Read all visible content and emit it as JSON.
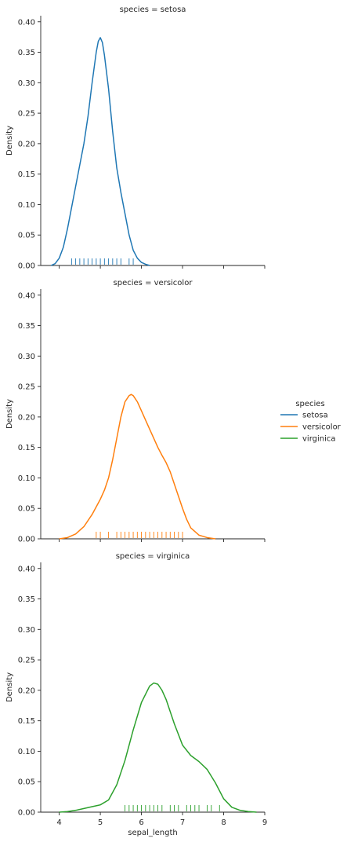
{
  "chart_data": {
    "type": "line",
    "kind": "kde-with-rug",
    "facet_variable": "species",
    "xlabel": "sepal_length",
    "ylabel": "Density",
    "xlim": [
      3.55,
      9.0
    ],
    "ylim": [
      0,
      0.41
    ],
    "xticks": [
      4,
      5,
      6,
      7,
      8,
      9
    ],
    "yticks": [
      0.0,
      0.05,
      0.1,
      0.15,
      0.2,
      0.25,
      0.3,
      0.35,
      0.4
    ],
    "grid": false,
    "legend": {
      "title": "species",
      "placement": "right-center"
    },
    "facets": [
      {
        "title": "species = setosa",
        "name": "setosa",
        "color": "#1f77b4",
        "x": [
          3.8,
          3.9,
          4.0,
          4.1,
          4.2,
          4.3,
          4.4,
          4.5,
          4.6,
          4.7,
          4.8,
          4.9,
          4.95,
          5.0,
          5.05,
          5.1,
          5.2,
          5.3,
          5.4,
          5.5,
          5.6,
          5.7,
          5.8,
          5.9,
          6.0,
          6.1,
          6.2
        ],
        "density": [
          0.0,
          0.003,
          0.012,
          0.03,
          0.06,
          0.095,
          0.13,
          0.165,
          0.2,
          0.245,
          0.3,
          0.35,
          0.368,
          0.374,
          0.366,
          0.345,
          0.29,
          0.22,
          0.16,
          0.12,
          0.085,
          0.05,
          0.025,
          0.012,
          0.005,
          0.002,
          0.0
        ],
        "rug": [
          4.3,
          4.4,
          4.5,
          4.6,
          4.7,
          4.8,
          4.9,
          5.0,
          5.1,
          5.2,
          5.3,
          5.4,
          5.5,
          5.7,
          5.8
        ]
      },
      {
        "title": "species = versicolor",
        "name": "versicolor",
        "color": "#ff7f0e",
        "x": [
          4.0,
          4.2,
          4.4,
          4.6,
          4.8,
          5.0,
          5.1,
          5.2,
          5.3,
          5.4,
          5.5,
          5.6,
          5.7,
          5.75,
          5.8,
          5.9,
          6.0,
          6.1,
          6.2,
          6.3,
          6.4,
          6.5,
          6.6,
          6.7,
          6.8,
          6.9,
          7.0,
          7.1,
          7.2,
          7.4,
          7.6,
          7.8
        ],
        "density": [
          0.0,
          0.002,
          0.008,
          0.02,
          0.04,
          0.065,
          0.08,
          0.1,
          0.13,
          0.165,
          0.2,
          0.225,
          0.235,
          0.237,
          0.235,
          0.225,
          0.21,
          0.195,
          0.18,
          0.165,
          0.15,
          0.137,
          0.125,
          0.11,
          0.09,
          0.07,
          0.05,
          0.032,
          0.018,
          0.006,
          0.002,
          0.0
        ],
        "rug": [
          4.9,
          5.0,
          5.2,
          5.4,
          5.5,
          5.6,
          5.7,
          5.8,
          5.9,
          6.0,
          6.1,
          6.2,
          6.3,
          6.4,
          6.5,
          6.6,
          6.7,
          6.8,
          6.9,
          7.0
        ]
      },
      {
        "title": "species = virginica",
        "name": "virginica",
        "color": "#2ca02c",
        "x": [
          4.0,
          4.2,
          4.4,
          4.6,
          4.8,
          5.0,
          5.2,
          5.4,
          5.6,
          5.8,
          6.0,
          6.2,
          6.3,
          6.4,
          6.5,
          6.6,
          6.8,
          7.0,
          7.2,
          7.4,
          7.6,
          7.8,
          8.0,
          8.2,
          8.4,
          8.6,
          8.8
        ],
        "density": [
          0.0,
          0.001,
          0.003,
          0.006,
          0.009,
          0.012,
          0.02,
          0.045,
          0.085,
          0.135,
          0.18,
          0.207,
          0.212,
          0.21,
          0.2,
          0.185,
          0.145,
          0.11,
          0.093,
          0.083,
          0.07,
          0.048,
          0.022,
          0.008,
          0.003,
          0.001,
          0.0
        ],
        "rug": [
          5.6,
          5.7,
          5.8,
          5.9,
          6.0,
          6.1,
          6.2,
          6.3,
          6.4,
          6.5,
          6.7,
          6.8,
          6.9,
          7.1,
          7.2,
          7.3,
          7.4,
          7.6,
          7.7,
          7.9
        ]
      }
    ]
  }
}
